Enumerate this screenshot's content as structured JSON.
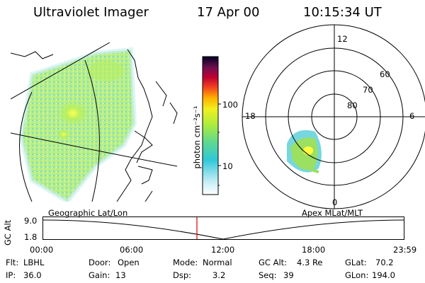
{
  "header": {
    "instrument": "Ultraviolet Imager",
    "date": "17 Apr 00",
    "time": "10:15:34 UT"
  },
  "colorbar": {
    "unit_label": "photon cm⁻²s⁻¹",
    "ticks": [
      "100",
      "10"
    ],
    "scale": "log"
  },
  "polar": {
    "mlt_labels": {
      "top": "12",
      "left": "18",
      "right": "6",
      "bottom": "0"
    },
    "lat_labels": [
      "60",
      "70",
      "80"
    ]
  },
  "maps": {
    "left_label": "Geographic Lat/Lon",
    "right_label": "Apex MLat/MLT"
  },
  "timeline": {
    "axis_title": "GC Alt",
    "y_ticks": [
      "9.0",
      "1.8"
    ],
    "x_ticks": [
      "00:00",
      "06:00",
      "12:00",
      "18:00",
      "23:59"
    ],
    "marker_time": "10:15"
  },
  "status": {
    "row1": [
      {
        "label": "Flt:",
        "value": "LBHL"
      },
      {
        "label": "Door:",
        "value": "Open"
      },
      {
        "label": "Mode:",
        "value": "Normal"
      },
      {
        "label": "GC Alt:",
        "value": "4.3 Re"
      },
      {
        "label": "GLat:",
        "value": "70.2"
      }
    ],
    "row2": [
      {
        "label": "IP:",
        "value": "36.0"
      },
      {
        "label": "Gain:",
        "value": "13"
      },
      {
        "label": "Dsp:",
        "value": "3.2"
      },
      {
        "label": "Seq:",
        "value": "39"
      },
      {
        "label": "GLon:",
        "value": "194.0"
      }
    ]
  },
  "colors": {
    "marker": "#e00000",
    "aurora_low": "#5fd0d8",
    "aurora_mid": "#9be060",
    "aurora_high": "#ffff40"
  }
}
